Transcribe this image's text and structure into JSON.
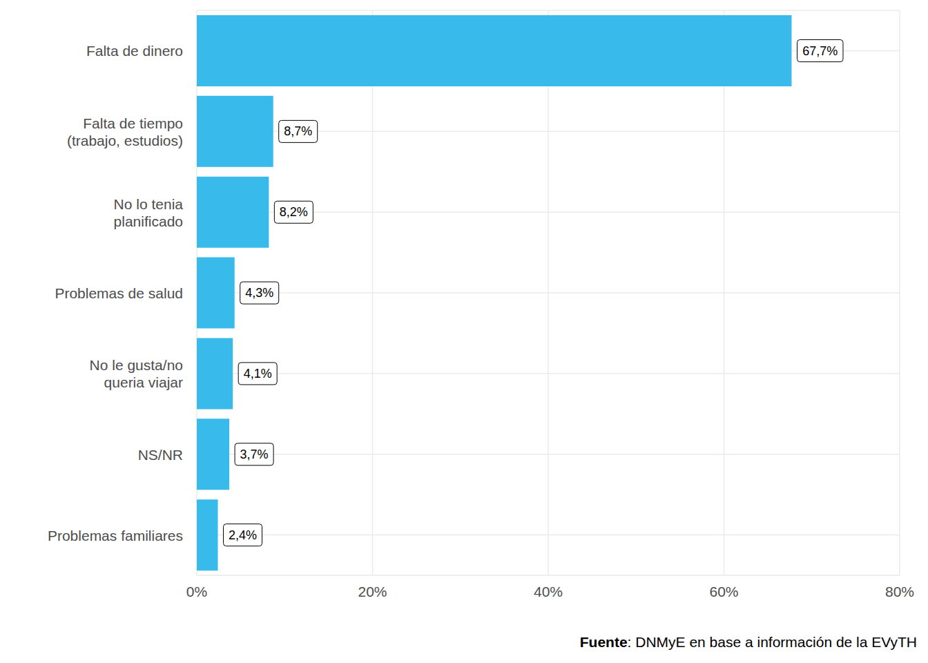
{
  "chart_data": {
    "type": "bar",
    "orientation": "horizontal",
    "categories": [
      "Falta de dinero",
      "Falta de tiempo\n(trabajo, estudios)",
      "No lo tenia\nplanificado",
      "Problemas de salud",
      "No le gusta/no\nqueria viajar",
      "NS/NR",
      "Problemas familiares"
    ],
    "values": [
      67.7,
      8.7,
      8.2,
      4.3,
      4.1,
      3.7,
      2.4
    ],
    "value_labels": [
      "67,7%",
      "8,7%",
      "8,2%",
      "4,3%",
      "4,1%",
      "3,7%",
      "2,4%"
    ],
    "color": "#38bbea",
    "xlim": [
      0,
      80
    ],
    "xticks": [
      {
        "value": 0,
        "label": "0%"
      },
      {
        "value": 20,
        "label": "20%"
      },
      {
        "value": 40,
        "label": "40%"
      },
      {
        "value": 60,
        "label": "60%"
      },
      {
        "value": 80,
        "label": "80%"
      }
    ],
    "grid": true,
    "data_labels": true,
    "annotations": {
      "source_label": "Fuente",
      "source_text": ": DNMyE en base a información de la EVyTH"
    }
  }
}
